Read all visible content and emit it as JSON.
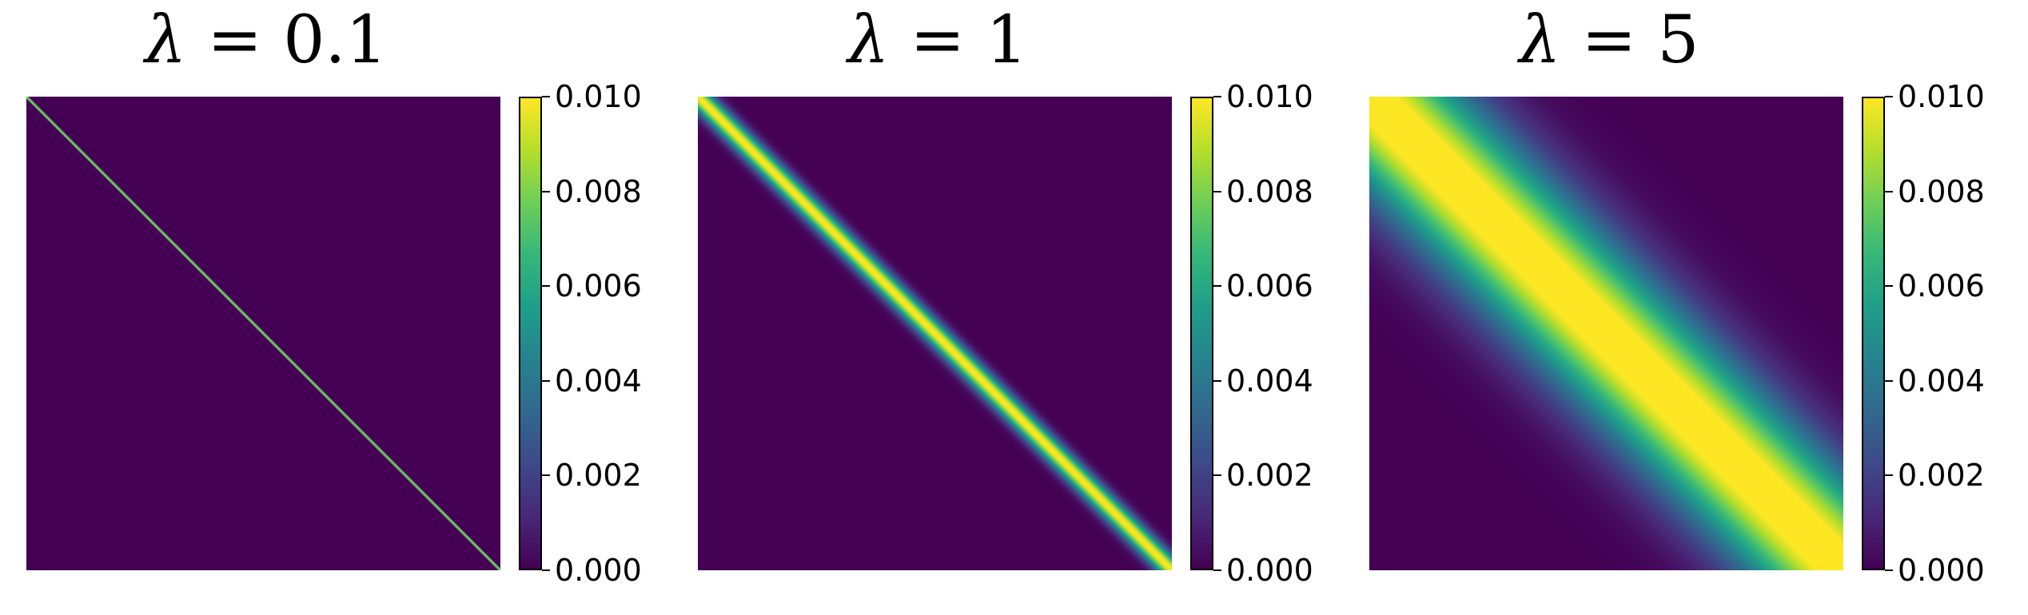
{
  "colormap": "viridis",
  "colormap_stops": [
    "#440154",
    "#482878",
    "#3e4989",
    "#31688e",
    "#26828e",
    "#1f9e89",
    "#35b779",
    "#6ece58",
    "#b5de2b",
    "#fde725"
  ],
  "chart_data": [
    {
      "type": "heatmap",
      "title_symbol": "λ",
      "title_rest": " = 0.1",
      "lambda": 0.1,
      "pattern": "diagonal band (Gaussian kernel, top-left to bottom-right)",
      "band_peak_value": 0.008,
      "background_value": 0.0,
      "colorbar_range": [
        0.0,
        0.01
      ],
      "colorbar_ticks": [
        "0.000",
        "0.002",
        "0.004",
        "0.006",
        "0.008",
        "0.010"
      ]
    },
    {
      "type": "heatmap",
      "title_symbol": "λ",
      "title_rest": " = 1",
      "lambda": 1,
      "pattern": "diagonal band (Gaussian kernel, top-left to bottom-right)",
      "band_peak_value": 0.01,
      "background_value": 0.0,
      "colorbar_range": [
        0.0,
        0.01
      ],
      "colorbar_ticks": [
        "0.000",
        "0.002",
        "0.004",
        "0.006",
        "0.008",
        "0.010"
      ]
    },
    {
      "type": "heatmap",
      "title_symbol": "λ",
      "title_rest": " = 5",
      "lambda": 5,
      "pattern": "diagonal band (Gaussian kernel, top-left to bottom-right)",
      "band_peak_value": 0.01,
      "background_value": 0.0,
      "colorbar_range": [
        0.0,
        0.01
      ],
      "colorbar_ticks": [
        "0.000",
        "0.002",
        "0.004",
        "0.006",
        "0.008",
        "0.010"
      ]
    }
  ]
}
